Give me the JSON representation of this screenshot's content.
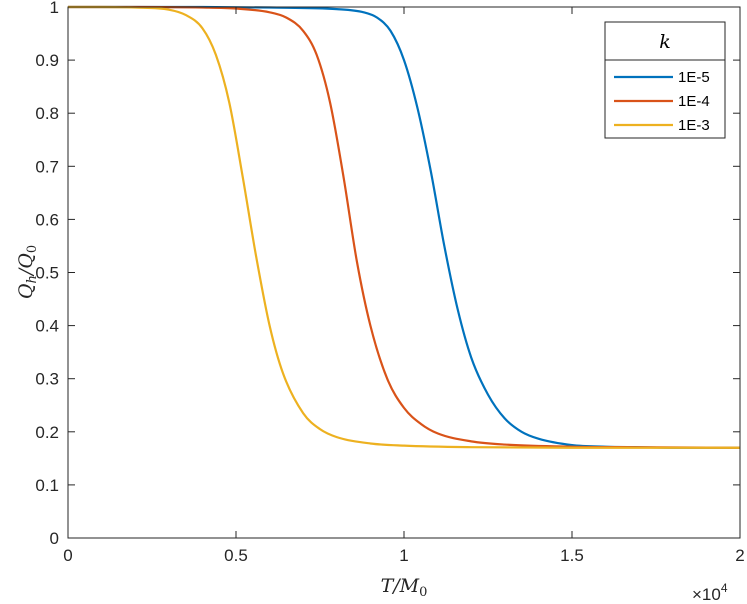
{
  "chart_data": {
    "type": "line",
    "title": "",
    "xlabel": "T/M0",
    "ylabel": "Qh/Q0",
    "x_multiplier_label": "×10",
    "x_multiplier_exp": "4",
    "xlim": [
      0,
      2
    ],
    "ylim": [
      0,
      1
    ],
    "x_ticks": [
      0,
      0.5,
      1,
      1.5,
      2
    ],
    "x_tick_labels": [
      "0",
      "0.5",
      "1",
      "1.5",
      "2"
    ],
    "y_ticks": [
      0,
      0.1,
      0.2,
      0.3,
      0.4,
      0.5,
      0.6,
      0.7,
      0.8,
      0.9,
      1
    ],
    "y_tick_labels": [
      "0",
      "0.1",
      "0.2",
      "0.3",
      "0.4",
      "0.5",
      "0.6",
      "0.7",
      "0.8",
      "0.9",
      "1"
    ],
    "grid": false,
    "legend_position": "top-right",
    "legend_title": "k",
    "series": [
      {
        "name": "1E-5",
        "color": "#0072BD",
        "x": [
          0,
          0.2,
          0.4,
          0.6,
          0.8,
          0.88,
          0.92,
          0.96,
          1.0,
          1.04,
          1.08,
          1.12,
          1.16,
          1.2,
          1.25,
          1.3,
          1.35,
          1.4,
          1.5,
          1.6,
          1.7,
          1.8,
          2.0
        ],
        "y": [
          1.0,
          1.0,
          1.0,
          0.999,
          0.996,
          0.99,
          0.98,
          0.955,
          0.9,
          0.81,
          0.69,
          0.55,
          0.43,
          0.34,
          0.27,
          0.225,
          0.2,
          0.187,
          0.175,
          0.172,
          0.171,
          0.17,
          0.17
        ]
      },
      {
        "name": "1E-4",
        "color": "#D95319",
        "x": [
          0,
          0.2,
          0.4,
          0.5,
          0.6,
          0.65,
          0.7,
          0.74,
          0.78,
          0.82,
          0.86,
          0.9,
          0.95,
          1.0,
          1.05,
          1.1,
          1.2,
          1.3,
          1.5,
          1.7,
          2.0
        ],
        "y": [
          1.0,
          1.0,
          0.999,
          0.997,
          0.99,
          0.98,
          0.955,
          0.91,
          0.82,
          0.68,
          0.52,
          0.4,
          0.3,
          0.245,
          0.215,
          0.197,
          0.182,
          0.176,
          0.172,
          0.171,
          0.17
        ]
      },
      {
        "name": "1E-3",
        "color": "#EDB120",
        "x": [
          0,
          0.1,
          0.2,
          0.3,
          0.35,
          0.4,
          0.44,
          0.48,
          0.52,
          0.56,
          0.6,
          0.64,
          0.7,
          0.75,
          0.8,
          0.9,
          1.0,
          1.2,
          1.5,
          2.0
        ],
        "y": [
          1.0,
          1.0,
          0.999,
          0.995,
          0.985,
          0.96,
          0.91,
          0.82,
          0.68,
          0.53,
          0.4,
          0.31,
          0.235,
          0.205,
          0.19,
          0.178,
          0.174,
          0.171,
          0.17,
          0.17
        ]
      }
    ]
  }
}
